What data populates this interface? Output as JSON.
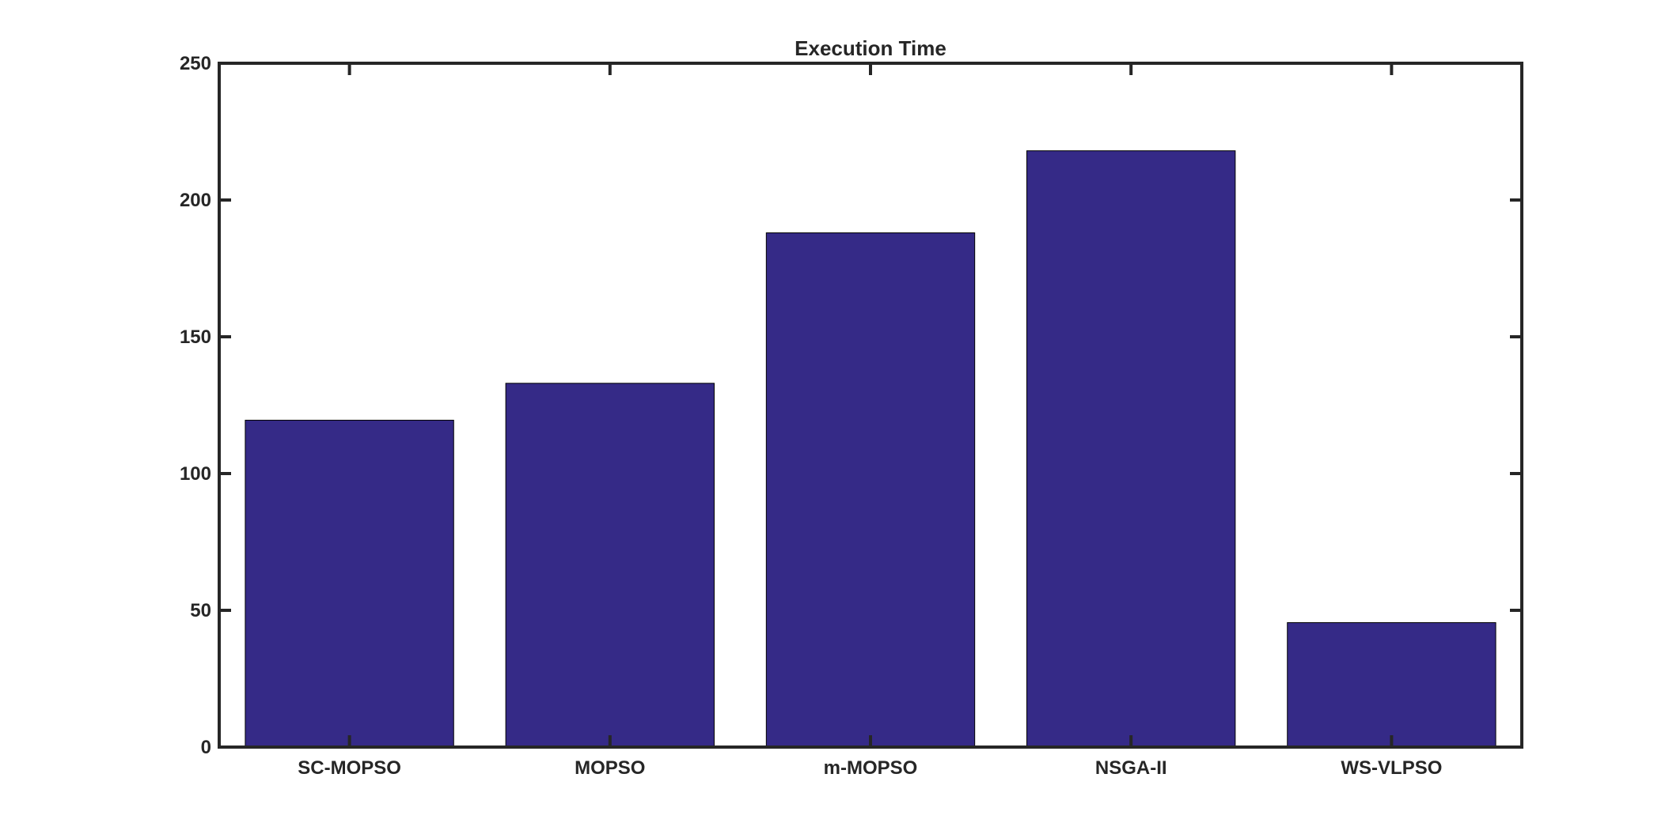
{
  "chart_data": {
    "type": "bar",
    "title": "Execution Time",
    "xlabel": "",
    "ylabel": "",
    "categories": [
      "SC-MOPSO",
      "MOPSO",
      "m-MOPSO",
      "NSGA-II",
      "WS-VLPSO"
    ],
    "values": [
      119.5,
      133,
      188,
      218,
      45.5
    ],
    "ylim": [
      0,
      250
    ],
    "yticks": [
      0,
      50,
      100,
      150,
      200,
      250
    ],
    "grid": false,
    "legend": "none",
    "bar_color": "#352a87",
    "axis_color": "#262626"
  }
}
